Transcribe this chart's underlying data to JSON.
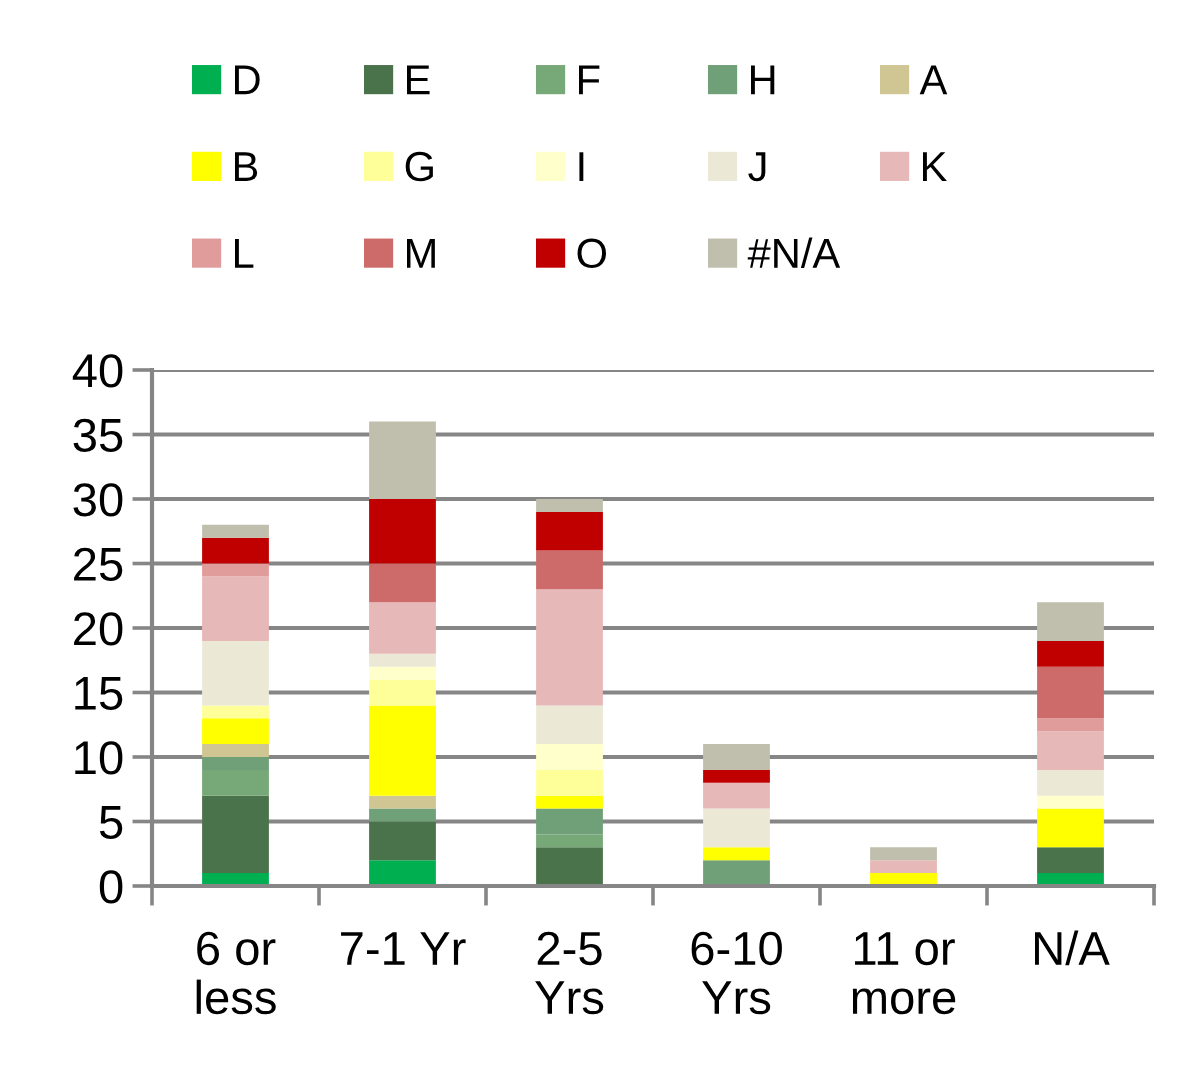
{
  "chart_data": {
    "type": "bar",
    "stacked": true,
    "categories": [
      "6 or\nless",
      "7-1 Yr",
      "2-5\nYrs",
      "6-10\nYrs",
      "11 or\nmore",
      "N/A"
    ],
    "ylim": [
      0,
      40
    ],
    "yticks": [
      0,
      5,
      10,
      15,
      20,
      25,
      30,
      35,
      40
    ],
    "grid": "y",
    "legend": "top",
    "series": [
      {
        "name": "D",
        "color": "#00b050",
        "values": [
          1,
          2,
          null,
          null,
          null,
          1
        ]
      },
      {
        "name": "E",
        "color": "#4b734b",
        "values": [
          6,
          3,
          3,
          null,
          null,
          2
        ]
      },
      {
        "name": "F",
        "color": "#77a877",
        "values": [
          2,
          null,
          1,
          null,
          null,
          null
        ]
      },
      {
        "name": "H",
        "color": "#70a077",
        "values": [
          1,
          1,
          2,
          2,
          null,
          null
        ]
      },
      {
        "name": "A",
        "color": "#cfc694",
        "values": [
          1,
          1,
          null,
          null,
          null,
          null
        ]
      },
      {
        "name": "B",
        "color": "#ffff00",
        "values": [
          2,
          7,
          1,
          1,
          1,
          3
        ]
      },
      {
        "name": "G",
        "color": "#ffff99",
        "values": [
          1,
          2,
          2,
          null,
          null,
          null
        ]
      },
      {
        "name": "I",
        "color": "#ffffcc",
        "values": [
          null,
          1,
          2,
          null,
          null,
          1
        ]
      },
      {
        "name": "J",
        "color": "#ebe9d5",
        "values": [
          5,
          1,
          3,
          3,
          null,
          2
        ]
      },
      {
        "name": "K",
        "color": "#e6b8b7",
        "values": [
          5,
          4,
          9,
          2,
          1,
          3
        ]
      },
      {
        "name": "L",
        "color": "#e09b9b",
        "values": [
          1,
          null,
          null,
          null,
          null,
          1
        ]
      },
      {
        "name": "M",
        "color": "#cd6a6a",
        "values": [
          null,
          3,
          3,
          null,
          null,
          4
        ]
      },
      {
        "name": "O",
        "color": "#c00000",
        "values": [
          2,
          5,
          3,
          1,
          null,
          2
        ]
      },
      {
        "name": "#N/A",
        "color": "#c0bfae",
        "values": [
          1,
          6,
          1,
          2,
          1,
          3
        ]
      }
    ]
  }
}
